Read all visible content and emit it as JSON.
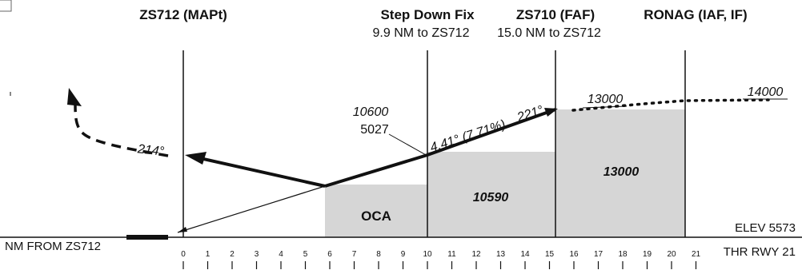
{
  "fixes": {
    "mapt": {
      "name": "ZS712 (MAPt)"
    },
    "sdf": {
      "name": "Step Down Fix",
      "distance": "9.9 NM to ZS712"
    },
    "faf": {
      "name": "ZS710 (FAF)",
      "distance": "15.0 NM to ZS712"
    },
    "ronag": {
      "name": "RONAG (IAF, IF)"
    }
  },
  "altitudes": {
    "sdf_msl": "10600",
    "sdf_hat": "5027",
    "faf_alt": "13000",
    "iaf_alt": "14000",
    "oca_label": "OCA",
    "seg_sdf_faf": "10590",
    "seg_faf_iaf": "13000"
  },
  "courses": {
    "missed": "214°",
    "final": "221°",
    "glide": "4.41° (7.71%)"
  },
  "runway": {
    "elevation": "ELEV 5573",
    "threshold": "THR RWY 21",
    "distance_label": "NM FROM ZS712"
  },
  "scale": {
    "ticks": [
      "0",
      "1",
      "2",
      "3",
      "4",
      "5",
      "6",
      "7",
      "8",
      "9",
      "10",
      "11",
      "12",
      "13",
      "14",
      "15",
      "16",
      "17",
      "18",
      "19",
      "20",
      "21"
    ]
  }
}
